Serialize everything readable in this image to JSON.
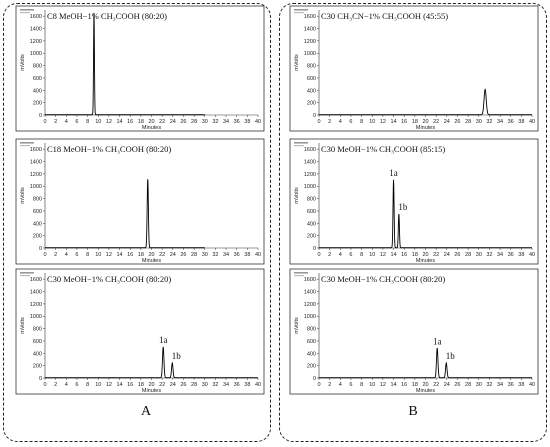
{
  "figure": {
    "group_labels": [
      "A",
      "B"
    ]
  },
  "chart_data": [
    {
      "type": "line",
      "title": "C8 MeOH−1% CH₃COOH (80:20)",
      "xlabel": "Minutes",
      "ylabel": "mVolts",
      "xlim": [
        0,
        40
      ],
      "ylim": [
        0,
        1700
      ],
      "xticks": [
        0,
        2,
        4,
        6,
        8,
        10,
        12,
        14,
        16,
        18,
        20,
        22,
        24,
        26,
        28,
        30,
        32,
        34,
        36,
        38,
        40
      ],
      "yticks": [
        0,
        200,
        400,
        600,
        800,
        1000,
        1200,
        1400,
        1600
      ],
      "trace_end": 30,
      "peaks": [
        {
          "rt": 9.2,
          "height": 1650,
          "width": 0.18,
          "label": ""
        }
      ]
    },
    {
      "type": "line",
      "title": "C18 MeOH−1% CH₃COOH (80:20)",
      "xlabel": "Minutes",
      "ylabel": "mVolts",
      "xlim": [
        0,
        40
      ],
      "ylim": [
        0,
        1700
      ],
      "xticks": [
        0,
        2,
        4,
        6,
        8,
        10,
        12,
        14,
        16,
        18,
        20,
        22,
        24,
        26,
        28,
        30,
        32,
        34,
        36,
        38,
        40
      ],
      "yticks": [
        0,
        200,
        400,
        600,
        800,
        1000,
        1200,
        1400,
        1600
      ],
      "trace_end": 30,
      "peaks": [
        {
          "rt": 19.3,
          "height": 1110,
          "width": 0.25,
          "label": ""
        }
      ]
    },
    {
      "type": "line",
      "title": "C30 MeOH−1% CH₃COOH (80:20)",
      "xlabel": "Minutes",
      "ylabel": "mVolts",
      "xlim": [
        0,
        40
      ],
      "ylim": [
        0,
        1700
      ],
      "xticks": [
        0,
        2,
        4,
        6,
        8,
        10,
        12,
        14,
        16,
        18,
        20,
        22,
        24,
        26,
        28,
        30,
        32,
        34,
        36,
        38,
        40
      ],
      "yticks": [
        0,
        200,
        400,
        600,
        800,
        1000,
        1200,
        1400,
        1600
      ],
      "trace_end": 40,
      "peaks": [
        {
          "rt": 22.2,
          "height": 500,
          "width": 0.3,
          "label": "1a"
        },
        {
          "rt": 23.9,
          "height": 240,
          "width": 0.3,
          "label": "1b"
        }
      ]
    },
    {
      "type": "line",
      "title": "C30 CH₃CN−1% CH₃COOH (45:55)",
      "xlabel": "Minutes",
      "ylabel": "mVolts",
      "xlim": [
        0,
        40
      ],
      "ylim": [
        0,
        1700
      ],
      "xticks": [
        0,
        2,
        4,
        6,
        8,
        10,
        12,
        14,
        16,
        18,
        20,
        22,
        24,
        26,
        28,
        30,
        32,
        34,
        36,
        38,
        40
      ],
      "yticks": [
        0,
        200,
        400,
        600,
        800,
        1000,
        1200,
        1400,
        1600
      ],
      "trace_end": 40,
      "peaks": [
        {
          "rt": 31.2,
          "height": 410,
          "width": 0.45,
          "label": ""
        }
      ]
    },
    {
      "type": "line",
      "title": "C30 MeOH−1% CH₃COOH (85:15)",
      "xlabel": "Minutes",
      "ylabel": "mVolts",
      "xlim": [
        0,
        40
      ],
      "ylim": [
        0,
        1700
      ],
      "xticks": [
        0,
        2,
        4,
        6,
        8,
        10,
        12,
        14,
        16,
        18,
        20,
        22,
        24,
        26,
        28,
        30,
        32,
        34,
        36,
        38,
        40
      ],
      "yticks": [
        0,
        200,
        400,
        600,
        800,
        1000,
        1200,
        1400,
        1600
      ],
      "trace_end": 40,
      "peaks": [
        {
          "rt": 14.0,
          "height": 1100,
          "width": 0.22,
          "label": "1a"
        },
        {
          "rt": 15.0,
          "height": 550,
          "width": 0.22,
          "label": "1b"
        }
      ]
    },
    {
      "type": "line",
      "title": "C30 MeOH−1% CH₃COOH (80:20)",
      "xlabel": "Minutes",
      "ylabel": "mVolts",
      "xlim": [
        0,
        40
      ],
      "ylim": [
        0,
        1700
      ],
      "xticks": [
        0,
        2,
        4,
        6,
        8,
        10,
        12,
        14,
        16,
        18,
        20,
        22,
        24,
        26,
        28,
        30,
        32,
        34,
        36,
        38,
        40
      ],
      "yticks": [
        0,
        200,
        400,
        600,
        800,
        1000,
        1200,
        1400,
        1600
      ],
      "trace_end": 40,
      "peaks": [
        {
          "rt": 22.2,
          "height": 480,
          "width": 0.3,
          "label": "1a"
        },
        {
          "rt": 23.9,
          "height": 240,
          "width": 0.3,
          "label": "1b"
        }
      ]
    }
  ]
}
